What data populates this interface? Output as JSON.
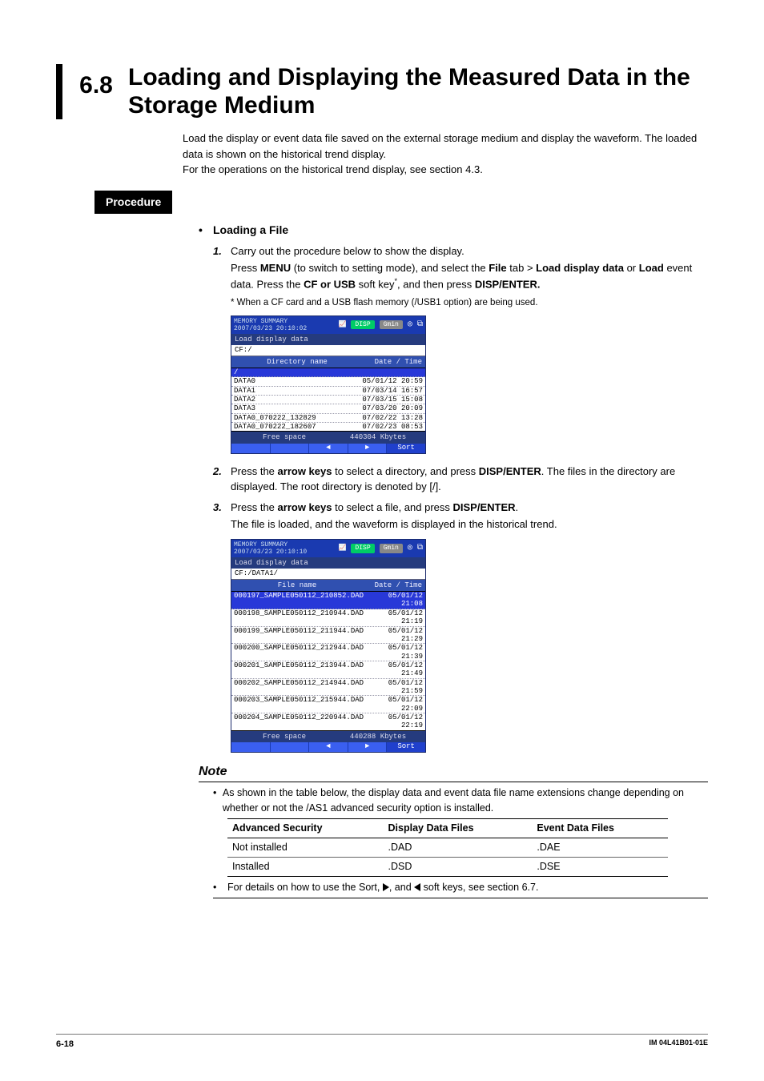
{
  "section": {
    "number": "6.8",
    "title": "Loading and Displaying the Measured Data in the Storage Medium"
  },
  "intro": [
    "Load the display or event data file saved on the external storage medium and display the waveform. The loaded data is shown on the historical trend display.",
    "For the operations on the historical trend display, see section 4.3."
  ],
  "procedure_label": "Procedure",
  "subheading": "Loading a File",
  "steps": {
    "s1": {
      "num": "1.",
      "line1": "Carry out the procedure below to show the display.",
      "line2_a": "Press ",
      "line2_b": "MENU",
      "line2_c": " (to switch to setting mode), and select the ",
      "line2_d": "File",
      "line2_e": " tab > ",
      "line2_f": "Load display data",
      "line2_g": " or ",
      "line2_h": "Load",
      "line2_i": " event data. Press the ",
      "line2_j": "CF or USB",
      "line2_k": " soft key",
      "line2_l": ", and then press ",
      "line2_m": "DISP/ENTER.",
      "footnote": "*  When a CF card and a USB flash memory (/USB1 option) are being used."
    },
    "s2": {
      "num": "2.",
      "a": "Press the ",
      "b": "arrow keys",
      "c": " to select a directory, and press ",
      "d": "DISP/ENTER",
      "e": ". The files in the directory are displayed. The root directory is denoted by [/]."
    },
    "s3": {
      "num": "3.",
      "a": "Press the ",
      "b": "arrow keys",
      "c": " to select a file, and press ",
      "d": "DISP/ENTER",
      "e": ".",
      "f": "The file is loaded, and the waveform is displayed in the historical trend."
    }
  },
  "shot1": {
    "title": "MEMORY SUMMARY",
    "ts": "2007/03/23 20:10:02",
    "badge": "DISP",
    "badge2": "Gmin",
    "sub1": "Load display data",
    "sub2": "CF:/",
    "hdr1": "Directory name",
    "hdr2": "Date / Time",
    "rows": [
      {
        "n": "/",
        "d": "",
        "sel": true
      },
      {
        "n": "DATA0",
        "d": "05/01/12 20:59"
      },
      {
        "n": "DATA1",
        "d": "07/03/14 16:57"
      },
      {
        "n": "DATA2",
        "d": "07/03/15 15:08"
      },
      {
        "n": "DATA3",
        "d": "07/03/20 20:09"
      },
      {
        "n": "DATA0_070222_132829",
        "d": "07/02/22 13:28"
      },
      {
        "n": "DATA0_070222_182607",
        "d": "07/02/23 08:53"
      }
    ],
    "free_l": "Free space",
    "free_v": "440304  Kbytes",
    "sort": "Sort"
  },
  "shot2": {
    "title": "MEMORY SUMMARY",
    "ts": "2007/03/23 20:10:10",
    "badge": "DISP",
    "badge2": "Gmin",
    "sub1": "Load display data",
    "sub2": "CF:/DATA1/",
    "hdr1": "File name",
    "hdr2": "Date / Time",
    "rows": [
      {
        "n": "000197_SAMPLE050112_210852.DAD",
        "d": "05/01/12 21:08",
        "sel": true
      },
      {
        "n": "000198_SAMPLE050112_210944.DAD",
        "d": "05/01/12 21:19"
      },
      {
        "n": "000199_SAMPLE050112_211944.DAD",
        "d": "05/01/12 21:29"
      },
      {
        "n": "000200_SAMPLE050112_212944.DAD",
        "d": "05/01/12 21:39"
      },
      {
        "n": "000201_SAMPLE050112_213944.DAD",
        "d": "05/01/12 21:49"
      },
      {
        "n": "000202_SAMPLE050112_214944.DAD",
        "d": "05/01/12 21:59"
      },
      {
        "n": "000203_SAMPLE050112_215944.DAD",
        "d": "05/01/12 22:09"
      },
      {
        "n": "000204_SAMPLE050112_220944.DAD",
        "d": "05/01/12 22:19"
      }
    ],
    "free_l": "Free space",
    "free_v": "440288  Kbytes",
    "sort": "Sort"
  },
  "note": {
    "heading": "Note",
    "b1": "As shown in the table below, the display data and event data file name extensions change depending on whether or not the /AS1 advanced security option is installed.",
    "table": {
      "h1": "Advanced Security",
      "h2": "Display Data Files",
      "h3": "Event Data Files",
      "rows": [
        {
          "c1": "Not installed",
          "c2": ".DAD",
          "c3": ".DAE"
        },
        {
          "c1": "Installed",
          "c2": ".DSD",
          "c3": ".DSE"
        }
      ]
    },
    "b2a": "For details on how to use the Sort, ",
    "b2b": ", and ",
    "b2c": " soft keys, see section 6.7."
  },
  "footer": {
    "page": "6-18",
    "doc": "IM 04L41B01-01E"
  }
}
